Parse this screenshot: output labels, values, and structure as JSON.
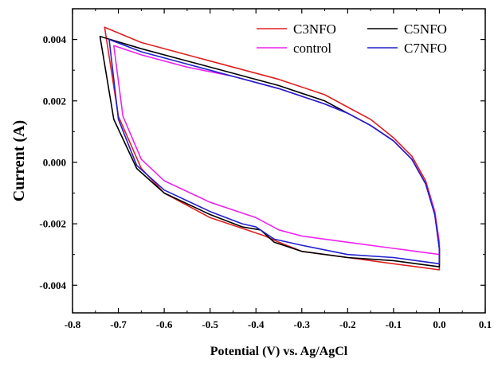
{
  "chart_data": {
    "type": "line",
    "xlabel": "Potential (V) vs. Ag/AgCl",
    "ylabel": "Current (A)",
    "xlim": [
      -0.8,
      0.1
    ],
    "ylim": [
      -0.0049,
      0.005
    ],
    "x_ticks": [
      -0.8,
      -0.7,
      -0.6,
      -0.5,
      -0.4,
      -0.3,
      -0.2,
      -0.1,
      0.0,
      0.1
    ],
    "x_tick_labels": [
      "-0.8",
      "-0.7",
      "-0.6",
      "-0.5",
      "-0.4",
      "-0.3",
      "-0.2",
      "-0.1",
      "0.0",
      "0.1"
    ],
    "y_ticks": [
      -0.004,
      -0.002,
      0.0,
      0.002,
      0.004
    ],
    "y_tick_labels": [
      "-0.004",
      "-0.002",
      "0.000",
      "0.002",
      "0.004"
    ],
    "grid": false,
    "legend_position": "top-right",
    "series": [
      {
        "name": "C3NFO",
        "color": "#e02020",
        "x": [
          -0.73,
          -0.65,
          -0.55,
          -0.45,
          -0.35,
          -0.25,
          -0.2,
          -0.15,
          -0.1,
          -0.06,
          -0.03,
          -0.01,
          0.0,
          0.0,
          -0.05,
          -0.1,
          -0.2,
          -0.3,
          -0.35,
          -0.38,
          -0.42,
          -0.5,
          -0.6,
          -0.65,
          -0.7,
          -0.73
        ],
        "y": [
          0.0044,
          0.0039,
          0.0035,
          0.0031,
          0.0027,
          0.0022,
          0.0018,
          0.0014,
          0.0008,
          0.0002,
          -0.0006,
          -0.0016,
          -0.0028,
          -0.0035,
          -0.0034,
          -0.0033,
          -0.0031,
          -0.0029,
          -0.0026,
          -0.0024,
          -0.0022,
          -0.0018,
          -0.001,
          -0.0002,
          0.0015,
          0.0044
        ]
      },
      {
        "name": "C5NFO",
        "color": "#000000",
        "x": [
          -0.74,
          -0.65,
          -0.55,
          -0.45,
          -0.35,
          -0.25,
          -0.2,
          -0.15,
          -0.1,
          -0.06,
          -0.03,
          -0.01,
          0.0,
          0.0,
          -0.05,
          -0.1,
          -0.2,
          -0.3,
          -0.36,
          -0.39,
          -0.43,
          -0.5,
          -0.6,
          -0.66,
          -0.71,
          -0.74
        ],
        "y": [
          0.0041,
          0.0037,
          0.0033,
          0.0029,
          0.0025,
          0.002,
          0.0016,
          0.0012,
          0.0007,
          0.0001,
          -0.0007,
          -0.0017,
          -0.0028,
          -0.0034,
          -0.0033,
          -0.0032,
          -0.0031,
          -0.0029,
          -0.0026,
          -0.0022,
          -0.0021,
          -0.0017,
          -0.001,
          -0.0002,
          0.0014,
          0.0041
        ]
      },
      {
        "name": "control",
        "color": "#ee22ee",
        "x": [
          -0.71,
          -0.65,
          -0.55,
          -0.45,
          -0.35,
          -0.25,
          -0.2,
          -0.15,
          -0.1,
          -0.06,
          -0.03,
          -0.01,
          0.0,
          0.0,
          -0.05,
          -0.1,
          -0.2,
          -0.3,
          -0.35,
          -0.4,
          -0.5,
          -0.6,
          -0.65,
          -0.69,
          -0.71
        ],
        "y": [
          0.0038,
          0.0035,
          0.0031,
          0.0028,
          0.0024,
          0.0019,
          0.0016,
          0.0012,
          0.0007,
          0.0001,
          -0.0007,
          -0.0016,
          -0.0026,
          -0.003,
          -0.0029,
          -0.0028,
          -0.0026,
          -0.0024,
          -0.0022,
          -0.0018,
          -0.0013,
          -0.0006,
          0.0001,
          0.0015,
          0.0038
        ]
      },
      {
        "name": "C7NFO",
        "color": "#2020cc",
        "x": [
          -0.72,
          -0.65,
          -0.55,
          -0.45,
          -0.35,
          -0.25,
          -0.2,
          -0.15,
          -0.1,
          -0.06,
          -0.03,
          -0.01,
          0.0,
          0.0,
          -0.05,
          -0.1,
          -0.2,
          -0.3,
          -0.36,
          -0.4,
          -0.43,
          -0.5,
          -0.6,
          -0.66,
          -0.7,
          -0.72
        ],
        "y": [
          0.004,
          0.0036,
          0.0032,
          0.0028,
          0.0024,
          0.0019,
          0.0016,
          0.0012,
          0.0007,
          0.0001,
          -0.0007,
          -0.0017,
          -0.0028,
          -0.0033,
          -0.0032,
          -0.0031,
          -0.003,
          -0.0027,
          -0.0025,
          -0.0021,
          -0.002,
          -0.0016,
          -0.0009,
          -0.0001,
          0.0014,
          0.004
        ]
      }
    ]
  }
}
